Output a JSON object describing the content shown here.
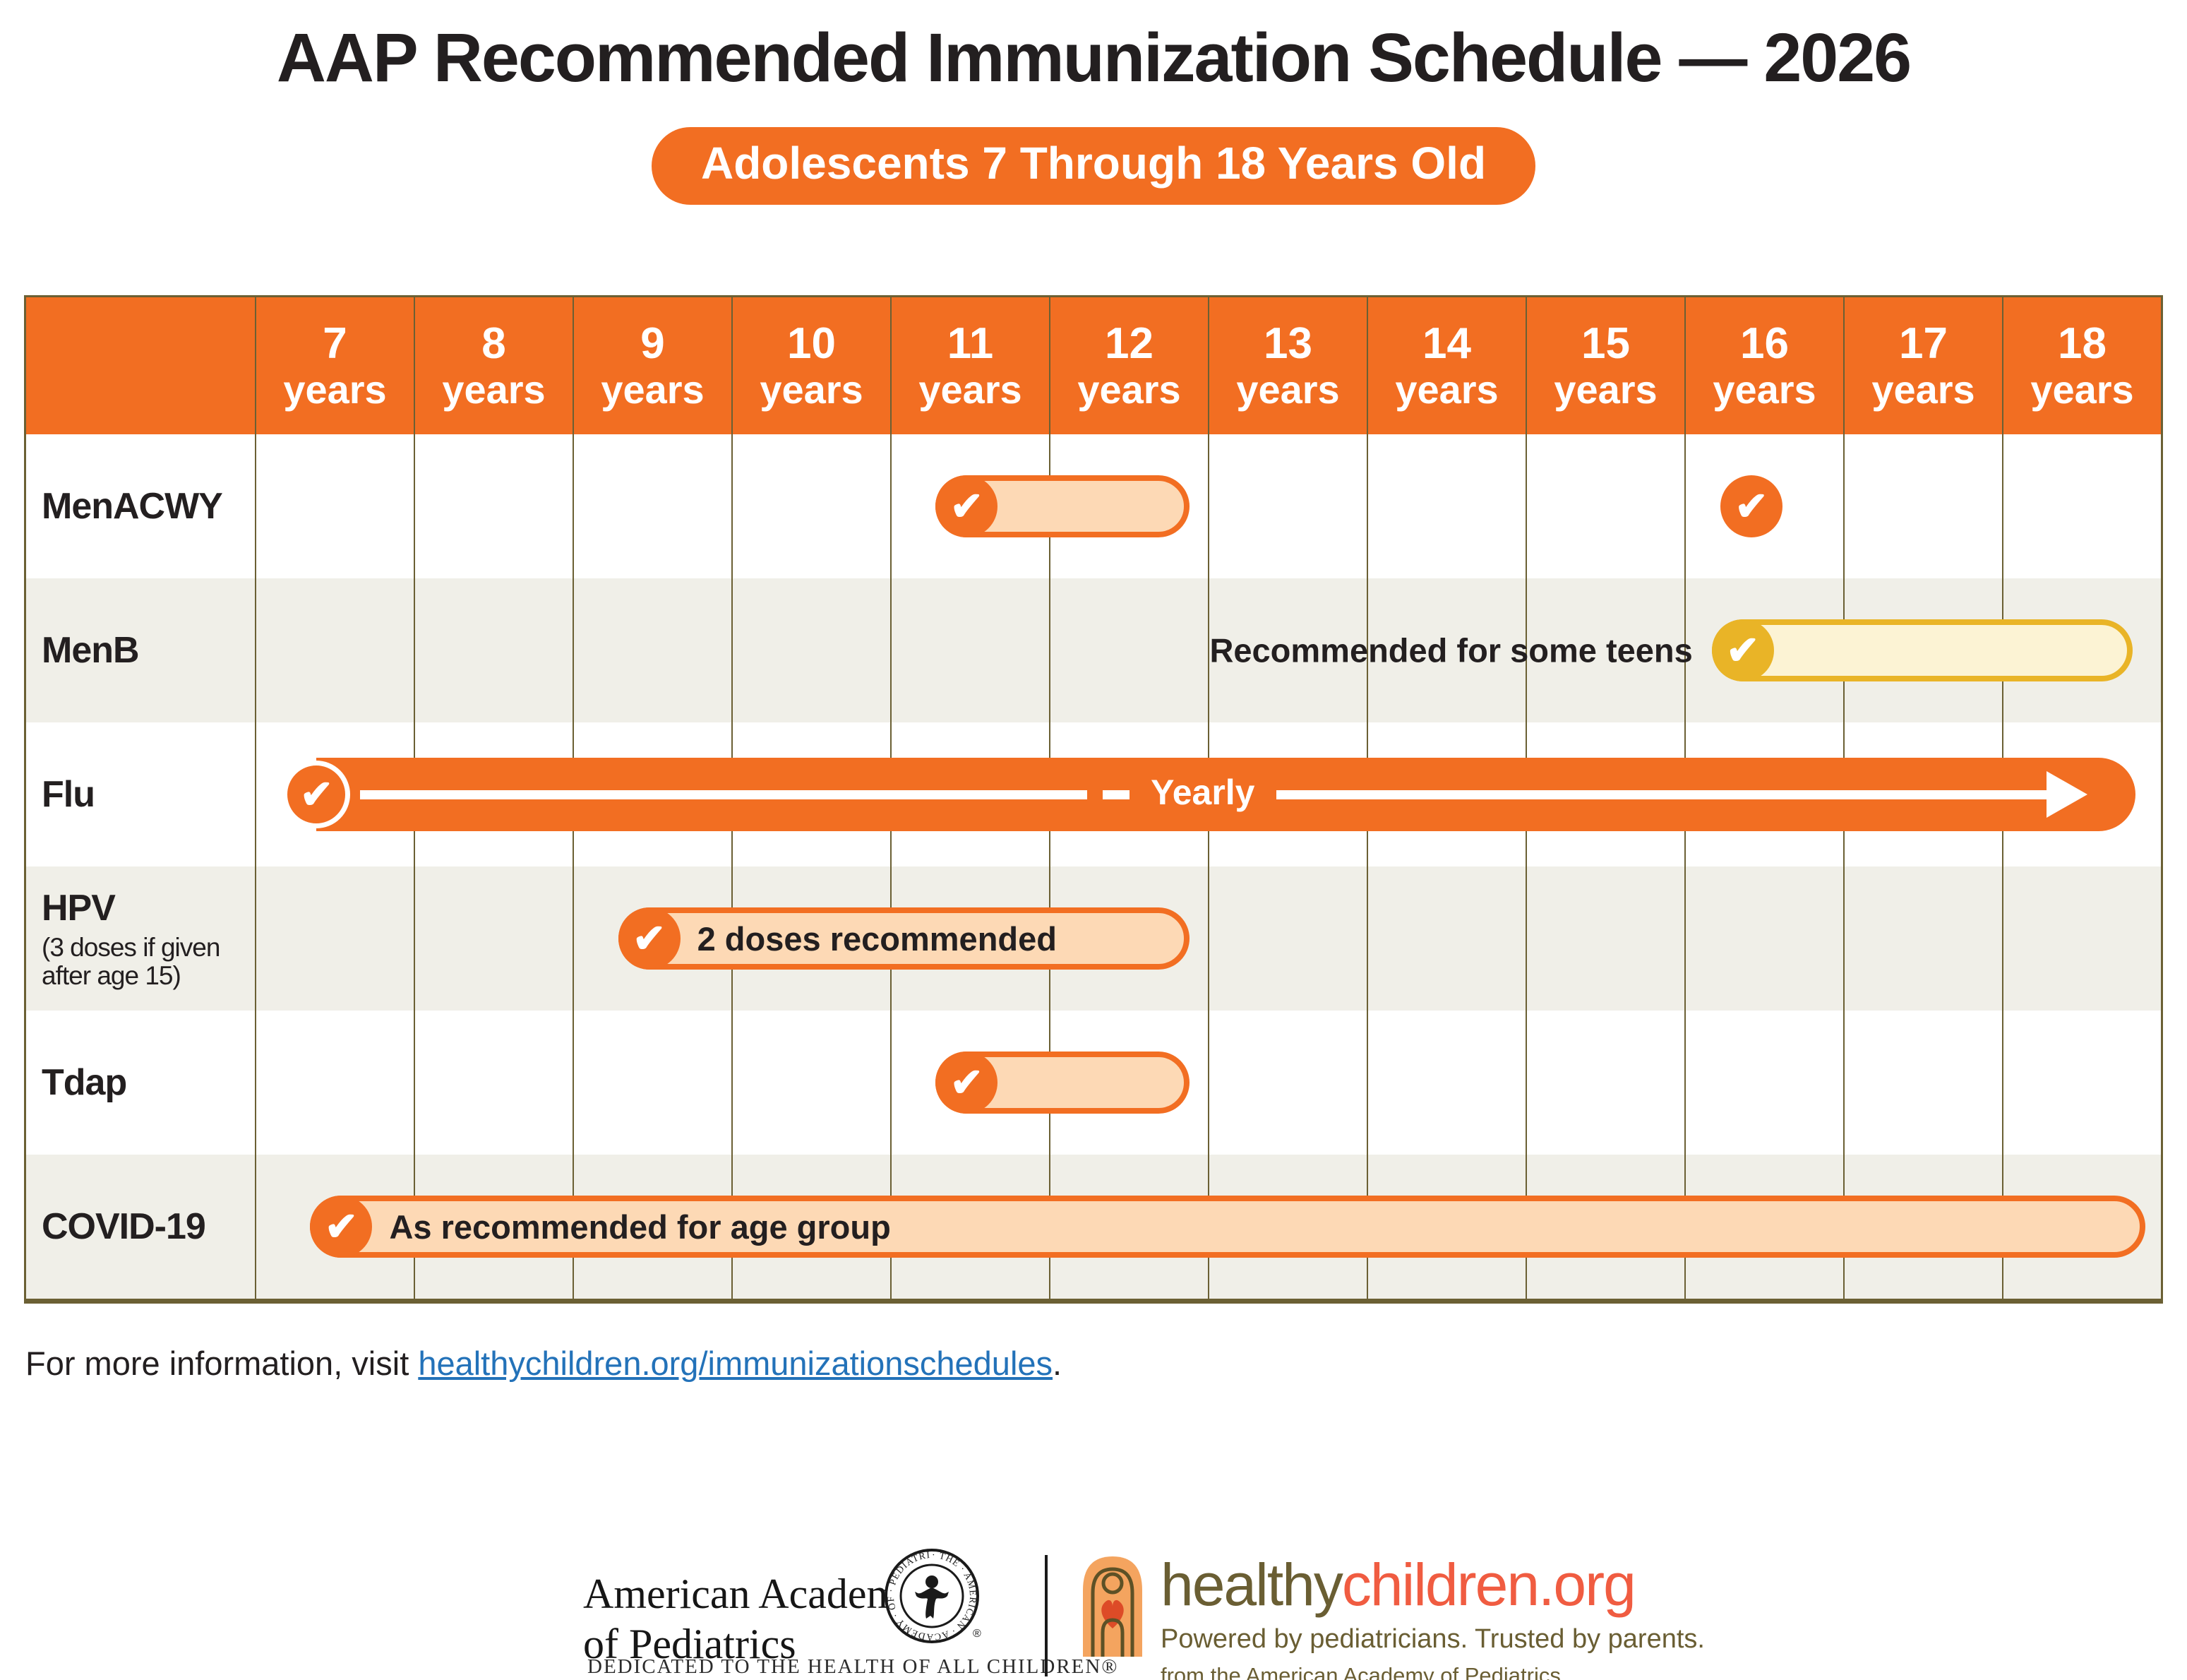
{
  "title": "AAP Recommended Immunization Schedule — 2026",
  "badge": "Adolescents 7 Through 18 Years Old",
  "colors": {
    "orange": "#F26E22",
    "pill_peach_fill": "#FDD9B5",
    "gold": "#E9B427",
    "pill_yellow_fill": "#FCF3D4",
    "row_shade": "#F0EFE8",
    "grid_olive": "#6B6034",
    "ink": "#231F20",
    "link_blue": "#2372B9",
    "logo_brown": "#6A5E33",
    "logo_redorange": "#F05C41"
  },
  "chart_data": {
    "type": "table",
    "title": "AAP Recommended Immunization Schedule — 2026",
    "subtitle": "Adolescents 7 Through 18 Years Old",
    "column_unit": "years",
    "age_columns": [
      "7",
      "8",
      "9",
      "10",
      "11",
      "12",
      "13",
      "14",
      "15",
      "16",
      "17",
      "18"
    ],
    "axis_note": "Columns span ages 7 through 18 years; marks below are placed in age units (7 = left edge of 7-years column, 19 = right edge of 18-years column)",
    "check_glyph": "✔",
    "rows": [
      {
        "vaccine": "MenACWY",
        "sublabel": "",
        "marks": [
          {
            "kind": "pill",
            "color": "orange",
            "age_start": 11.28,
            "age_end": 12.88,
            "text": ""
          },
          {
            "kind": "check",
            "color": "orange",
            "age": 16.42
          }
        ]
      },
      {
        "vaccine": "MenB",
        "sublabel": "",
        "marks": [
          {
            "kind": "note",
            "text": "Recommended for some teens",
            "age_end": 16.05
          },
          {
            "kind": "pill",
            "color": "gold",
            "age_start": 16.17,
            "age_end": 18.82,
            "text": ""
          }
        ]
      },
      {
        "vaccine": "Flu",
        "sublabel": "",
        "marks": [
          {
            "kind": "arrow",
            "color": "orange",
            "age_start": 7.38,
            "age_end": 18.84,
            "text": "Yearly"
          }
        ]
      },
      {
        "vaccine": "HPV",
        "sublabel": "(3 doses if given after age 15)",
        "marks": [
          {
            "kind": "pill",
            "color": "orange",
            "age_start": 9.28,
            "age_end": 12.88,
            "text": "2 doses recommended"
          }
        ]
      },
      {
        "vaccine": "Tdap",
        "sublabel": "",
        "marks": [
          {
            "kind": "pill",
            "color": "orange",
            "age_start": 11.28,
            "age_end": 12.88,
            "text": ""
          }
        ]
      },
      {
        "vaccine": "COVID-19",
        "sublabel": "",
        "marks": [
          {
            "kind": "pill",
            "color": "orange",
            "age_start": 7.34,
            "age_end": 18.9,
            "text": "As recommended for age group"
          }
        ]
      }
    ]
  },
  "footer": {
    "prefix": "For more information, visit ",
    "link": "healthychildren.org/immunizationschedules",
    "suffix": "."
  },
  "logos": {
    "aap": {
      "line1": "American Academy",
      "line2": "of Pediatrics",
      "seal_ring_text": "· THE · AMERICAN · ACADEMY · OF · PEDIATRICS ·",
      "registered": "®",
      "tagline": "DEDICATED TO THE HEALTH OF ALL CHILDREN®"
    },
    "healthychildren": {
      "word1": "healthy",
      "word2": "children.org",
      "tagline1": "Powered by pediatricians. Trusted by parents.",
      "tagline2": "from the American Academy of Pediatrics"
    }
  }
}
